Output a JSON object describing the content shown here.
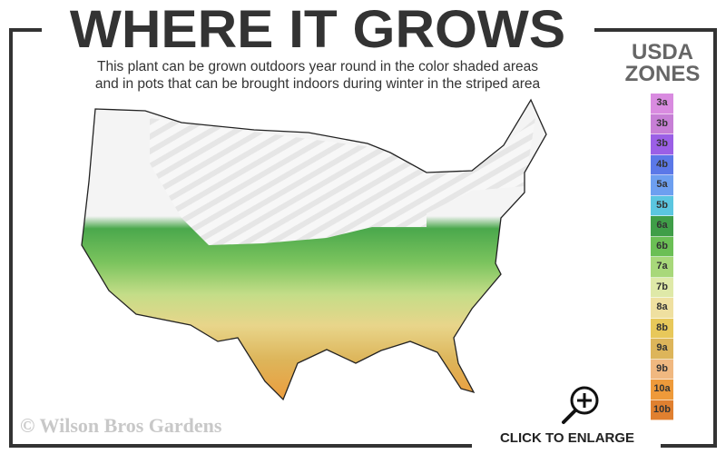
{
  "header": {
    "title": "WHERE IT GROWS",
    "subtitle_line1": "This plant can be grown outdoors year round in the color shaded areas",
    "subtitle_line2": "and in pots that can be brought indoors during winter in the striped area"
  },
  "legend": {
    "title_line1": "USDA",
    "title_line2": "ZONES",
    "zones": [
      {
        "label": "3a",
        "color": "#d98be0"
      },
      {
        "label": "3b",
        "color": "#c77fd6"
      },
      {
        "label": "3b",
        "color": "#9b5fe6"
      },
      {
        "label": "4b",
        "color": "#5b78e8"
      },
      {
        "label": "5a",
        "color": "#6d9ff0"
      },
      {
        "label": "5b",
        "color": "#5bc6e0"
      },
      {
        "label": "6a",
        "color": "#3f9e48"
      },
      {
        "label": "6b",
        "color": "#6bbf55"
      },
      {
        "label": "7a",
        "color": "#a8d87a"
      },
      {
        "label": "7b",
        "color": "#dfe9a8"
      },
      {
        "label": "8a",
        "color": "#efe0a0"
      },
      {
        "label": "8b",
        "color": "#e8c85a"
      },
      {
        "label": "9a",
        "color": "#ddb55a"
      },
      {
        "label": "9b",
        "color": "#f0b880"
      },
      {
        "label": "10a",
        "color": "#ee9a3a"
      },
      {
        "label": "10b",
        "color": "#e08030"
      }
    ]
  },
  "footer": {
    "copyright": "© Wilson Bros Gardens",
    "enlarge_label": "CLICK TO ENLARGE",
    "enlarge_icon": "zoom-in-magnifier-icon"
  }
}
